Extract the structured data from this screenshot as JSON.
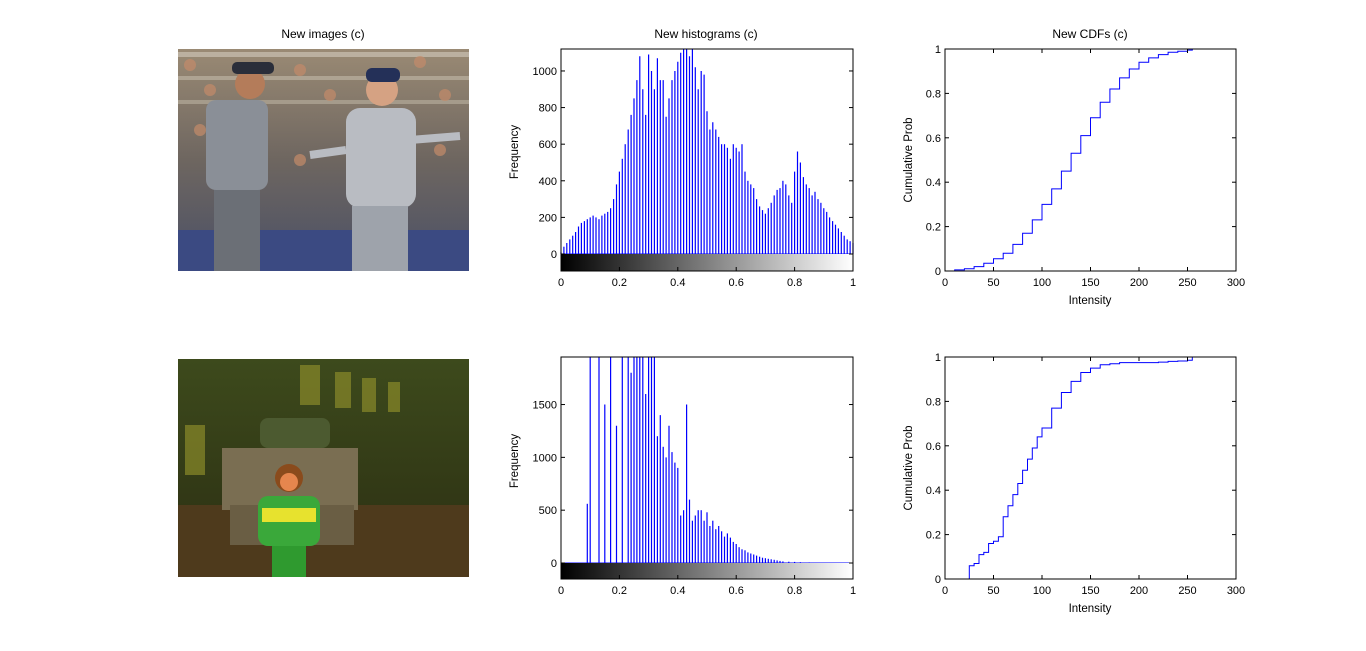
{
  "images_panel": {
    "title": "New images (c)",
    "photo_1": "baseball umpire and manager arguing on field, crowd in background",
    "photo_2": "child in green and yellow jacket standing in front of stone pedestal at night"
  },
  "colors": {
    "series": "#0000ff",
    "axis": "#000000",
    "background": "#ffffff"
  },
  "chart_data": [
    {
      "type": "bar",
      "title": "New histograms (c)",
      "xlabel": "",
      "ylabel": "Frequency",
      "xlim": [
        0,
        1
      ],
      "ylim": [
        -150,
        1120
      ],
      "xticks": [
        "0",
        "0.2",
        "0.4",
        "0.6",
        "0.8",
        "1"
      ],
      "yticks": [
        "0",
        "200",
        "400",
        "600",
        "800",
        "1000"
      ],
      "colorbar": "grayscale 0 to 1",
      "x": [
        0.0,
        0.01,
        0.02,
        0.03,
        0.04,
        0.05,
        0.06,
        0.07,
        0.08,
        0.09,
        0.1,
        0.11,
        0.12,
        0.13,
        0.14,
        0.15,
        0.16,
        0.17,
        0.18,
        0.19,
        0.2,
        0.21,
        0.22,
        0.23,
        0.24,
        0.25,
        0.26,
        0.27,
        0.28,
        0.29,
        0.3,
        0.31,
        0.32,
        0.33,
        0.34,
        0.35,
        0.36,
        0.37,
        0.38,
        0.39,
        0.4,
        0.41,
        0.42,
        0.43,
        0.44,
        0.45,
        0.46,
        0.47,
        0.48,
        0.49,
        0.5,
        0.51,
        0.52,
        0.53,
        0.54,
        0.55,
        0.56,
        0.57,
        0.58,
        0.59,
        0.6,
        0.61,
        0.62,
        0.63,
        0.64,
        0.65,
        0.66,
        0.67,
        0.68,
        0.69,
        0.7,
        0.71,
        0.72,
        0.73,
        0.74,
        0.75,
        0.76,
        0.77,
        0.78,
        0.79,
        0.8,
        0.81,
        0.82,
        0.83,
        0.84,
        0.85,
        0.86,
        0.87,
        0.88,
        0.89,
        0.9,
        0.91,
        0.92,
        0.93,
        0.94,
        0.95,
        0.96,
        0.97,
        0.98,
        0.99,
        1.0
      ],
      "values": [
        10,
        40,
        60,
        80,
        100,
        120,
        150,
        170,
        180,
        190,
        200,
        210,
        200,
        190,
        210,
        220,
        230,
        250,
        300,
        380,
        450,
        520,
        600,
        680,
        760,
        850,
        950,
        1080,
        900,
        760,
        1090,
        1000,
        900,
        1070,
        950,
        950,
        750,
        850,
        950,
        1000,
        1050,
        1100,
        1120,
        1120,
        1080,
        1120,
        1020,
        900,
        1000,
        980,
        780,
        680,
        720,
        680,
        640,
        600,
        600,
        580,
        520,
        600,
        580,
        560,
        600,
        450,
        400,
        380,
        360,
        300,
        260,
        240,
        220,
        250,
        280,
        320,
        350,
        360,
        400,
        380,
        320,
        280,
        450,
        560,
        500,
        420,
        380,
        360,
        320,
        340,
        300,
        280,
        250,
        230,
        200,
        180,
        160,
        140,
        120,
        100,
        80,
        70,
        60
      ]
    },
    {
      "type": "line",
      "title": "New CDFs (c)",
      "xlabel": "Intensity",
      "ylabel": "Cumulative Prob",
      "xlim": [
        0,
        300
      ],
      "ylim": [
        0,
        1
      ],
      "xticks": [
        "0",
        "50",
        "100",
        "150",
        "200",
        "250",
        "300"
      ],
      "yticks": [
        "0",
        "0.2",
        "0.4",
        "0.6",
        "0.8",
        "1"
      ],
      "x": [
        0,
        10,
        20,
        30,
        40,
        50,
        60,
        70,
        80,
        90,
        100,
        110,
        120,
        130,
        140,
        150,
        160,
        170,
        180,
        190,
        200,
        210,
        220,
        230,
        240,
        250,
        255
      ],
      "values": [
        0,
        0.005,
        0.01,
        0.02,
        0.035,
        0.055,
        0.08,
        0.12,
        0.17,
        0.23,
        0.3,
        0.37,
        0.45,
        0.53,
        0.61,
        0.69,
        0.76,
        0.82,
        0.87,
        0.91,
        0.94,
        0.96,
        0.975,
        0.985,
        0.99,
        0.995,
        1.0
      ]
    },
    {
      "type": "bar",
      "title": "",
      "xlabel": "",
      "ylabel": "Frequency",
      "xlim": [
        0,
        1
      ],
      "ylim": [
        -150,
        1950
      ],
      "xticks": [
        "0",
        "0.2",
        "0.4",
        "0.6",
        "0.8",
        "1"
      ],
      "yticks": [
        "0",
        "500",
        "1000",
        "1500"
      ],
      "colorbar": "grayscale 0 to 1",
      "x": [
        0.09,
        0.1,
        0.13,
        0.15,
        0.17,
        0.19,
        0.21,
        0.23,
        0.24,
        0.25,
        0.26,
        0.27,
        0.28,
        0.29,
        0.3,
        0.31,
        0.32,
        0.33,
        0.34,
        0.35,
        0.36,
        0.37,
        0.38,
        0.39,
        0.4,
        0.41,
        0.42,
        0.43,
        0.44,
        0.45,
        0.46,
        0.47,
        0.48,
        0.49,
        0.5,
        0.51,
        0.52,
        0.53,
        0.54,
        0.55,
        0.56,
        0.57,
        0.58,
        0.59,
        0.6,
        0.61,
        0.62,
        0.63,
        0.64,
        0.65,
        0.66,
        0.67,
        0.68,
        0.69,
        0.7,
        0.71,
        0.72,
        0.73,
        0.74,
        0.75,
        0.76,
        0.78,
        0.8,
        0.82,
        0.85,
        0.9
      ],
      "values": [
        560,
        1950,
        1950,
        1500,
        1950,
        1300,
        1950,
        1950,
        1800,
        1950,
        1950,
        1950,
        1950,
        1600,
        1950,
        1950,
        1950,
        1200,
        1400,
        1100,
        1000,
        1300,
        1050,
        950,
        900,
        450,
        500,
        1500,
        600,
        400,
        450,
        500,
        500,
        400,
        480,
        350,
        400,
        320,
        350,
        300,
        250,
        280,
        240,
        200,
        180,
        150,
        130,
        120,
        100,
        90,
        80,
        70,
        60,
        50,
        45,
        40,
        35,
        30,
        25,
        20,
        15,
        12,
        10,
        8,
        6,
        5
      ]
    },
    {
      "type": "line",
      "title": "",
      "xlabel": "Intensity",
      "ylabel": "Cumulative Prob",
      "xlim": [
        0,
        300
      ],
      "ylim": [
        0,
        1
      ],
      "xticks": [
        "0",
        "50",
        "100",
        "150",
        "200",
        "250",
        "300"
      ],
      "yticks": [
        "0",
        "0.2",
        "0.4",
        "0.6",
        "0.8",
        "1"
      ],
      "x": [
        22,
        25,
        30,
        35,
        40,
        45,
        50,
        55,
        60,
        65,
        70,
        75,
        80,
        85,
        90,
        95,
        100,
        110,
        120,
        130,
        140,
        150,
        160,
        170,
        180,
        190,
        200,
        210,
        220,
        230,
        240,
        250,
        255
      ],
      "values": [
        0,
        0.06,
        0.07,
        0.11,
        0.12,
        0.16,
        0.17,
        0.19,
        0.28,
        0.33,
        0.38,
        0.43,
        0.49,
        0.54,
        0.59,
        0.64,
        0.68,
        0.77,
        0.84,
        0.89,
        0.93,
        0.95,
        0.965,
        0.97,
        0.975,
        0.975,
        0.975,
        0.975,
        0.977,
        0.98,
        0.982,
        0.985,
        1.0
      ]
    }
  ]
}
